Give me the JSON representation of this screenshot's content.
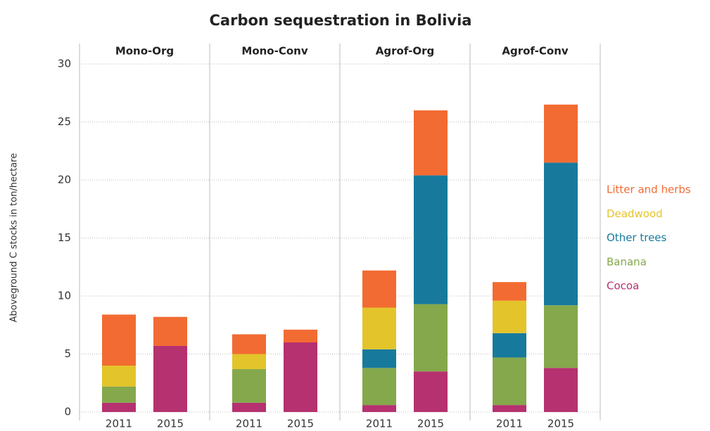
{
  "title": "Carbon sequestration in Bolivia",
  "ylabel": "Aboveground C stocks in ton/hectare",
  "chart_data": [
    {
      "type": "bar",
      "stacked": true,
      "title": "Mono-Org",
      "categories": [
        "2011",
        "2015"
      ],
      "ylim": [
        0,
        30
      ],
      "yticks": [
        0,
        5,
        10,
        15,
        20,
        25,
        30
      ],
      "grid": true,
      "legend": "right",
      "series": [
        {
          "name": "Cocoa",
          "color": "#b5316f",
          "values": [
            0.8,
            5.7
          ]
        },
        {
          "name": "Banana",
          "color": "#84a84b",
          "values": [
            1.4,
            0
          ]
        },
        {
          "name": "Other trees",
          "color": "#177a9c",
          "values": [
            0,
            0
          ]
        },
        {
          "name": "Deadwood",
          "color": "#e3c42a",
          "values": [
            1.8,
            0
          ]
        },
        {
          "name": "Litter and herbs",
          "color": "#f26b32",
          "values": [
            4.4,
            2.5
          ]
        }
      ]
    },
    {
      "type": "bar",
      "stacked": true,
      "title": "Mono-Conv",
      "categories": [
        "2011",
        "2015"
      ],
      "ylim": [
        0,
        30
      ],
      "yticks": [
        0,
        5,
        10,
        15,
        20,
        25,
        30
      ],
      "grid": true,
      "series": [
        {
          "name": "Cocoa",
          "color": "#b5316f",
          "values": [
            0.8,
            6.0
          ]
        },
        {
          "name": "Banana",
          "color": "#84a84b",
          "values": [
            2.9,
            0
          ]
        },
        {
          "name": "Other trees",
          "color": "#177a9c",
          "values": [
            0,
            0
          ]
        },
        {
          "name": "Deadwood",
          "color": "#e3c42a",
          "values": [
            1.3,
            0
          ]
        },
        {
          "name": "Litter and herbs",
          "color": "#f26b32",
          "values": [
            1.7,
            1.1
          ]
        }
      ]
    },
    {
      "type": "bar",
      "stacked": true,
      "title": "Agrof-Org",
      "categories": [
        "2011",
        "2015"
      ],
      "ylim": [
        0,
        30
      ],
      "yticks": [
        0,
        5,
        10,
        15,
        20,
        25,
        30
      ],
      "grid": true,
      "series": [
        {
          "name": "Cocoa",
          "color": "#b5316f",
          "values": [
            0.6,
            3.5
          ]
        },
        {
          "name": "Banana",
          "color": "#84a84b",
          "values": [
            3.2,
            5.8
          ]
        },
        {
          "name": "Other trees",
          "color": "#177a9c",
          "values": [
            1.6,
            11.1
          ]
        },
        {
          "name": "Deadwood",
          "color": "#e3c42a",
          "values": [
            3.6,
            0
          ]
        },
        {
          "name": "Litter and herbs",
          "color": "#f26b32",
          "values": [
            3.2,
            5.6
          ]
        }
      ]
    },
    {
      "type": "bar",
      "stacked": true,
      "title": "Agrof-Conv",
      "categories": [
        "2011",
        "2015"
      ],
      "ylim": [
        0,
        30
      ],
      "yticks": [
        0,
        5,
        10,
        15,
        20,
        25,
        30
      ],
      "grid": true,
      "series": [
        {
          "name": "Cocoa",
          "color": "#b5316f",
          "values": [
            0.6,
            3.8
          ]
        },
        {
          "name": "Banana",
          "color": "#84a84b",
          "values": [
            4.1,
            5.4
          ]
        },
        {
          "name": "Other trees",
          "color": "#177a9c",
          "values": [
            2.1,
            12.3
          ]
        },
        {
          "name": "Deadwood",
          "color": "#e3c42a",
          "values": [
            2.8,
            0
          ]
        },
        {
          "name": "Litter and herbs",
          "color": "#f26b32",
          "values": [
            1.6,
            5.0
          ]
        }
      ]
    }
  ]
}
